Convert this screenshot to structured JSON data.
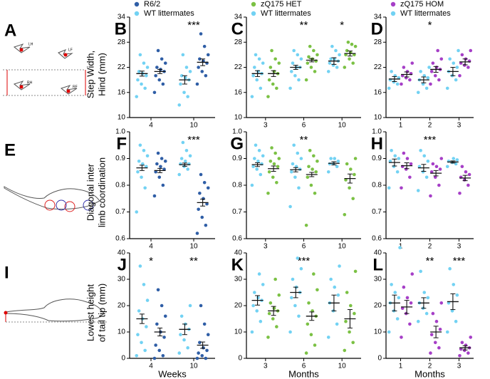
{
  "schematics": [
    {
      "label": "A",
      "texts": [
        "LH",
        "LF",
        "RH",
        "RF"
      ]
    },
    {
      "label": "E"
    },
    {
      "label": "I"
    }
  ],
  "chart_data": [
    {
      "type": "dot",
      "panel": "B",
      "ylabel": [
        "Step Width,",
        "Hind (mm)"
      ],
      "categories": [
        "4",
        "10"
      ],
      "ylim": [
        10,
        34
      ],
      "yticks": [
        10,
        16,
        22,
        28,
        34
      ],
      "legend": true,
      "significance": [
        null,
        "***"
      ],
      "series": [
        {
          "name": "WT littermates",
          "color": "#72d2f3",
          "points": [
            [
              15,
              17,
              18,
              19,
              20,
              20.5,
              21,
              22,
              23,
              25
            ],
            [
              13,
              15,
              16,
              18,
              19,
              19.5,
              20,
              21,
              22,
              25
            ]
          ],
          "mean": [
            20.5,
            19
          ],
          "sem": [
            0.6,
            1.0
          ]
        },
        {
          "name": "R6/2",
          "color": "#2f5ea6",
          "points": [
            [
              16,
              18,
              19,
              20,
              21,
              21.5,
              22,
              23,
              24,
              26
            ],
            [
              18,
              20,
              21,
              22,
              23,
              23.5,
              24,
              25,
              27,
              30
            ]
          ],
          "mean": [
            21,
            23.2
          ],
          "sem": [
            0.5,
            0.8
          ]
        }
      ]
    },
    {
      "type": "dot",
      "panel": "C",
      "categories": [
        "3",
        "6",
        "10"
      ],
      "ylim": [
        10,
        34
      ],
      "yticks": [
        10,
        16,
        22,
        28,
        34
      ],
      "legend": true,
      "significance": [
        null,
        "**",
        "*"
      ],
      "series": [
        {
          "name": "WT littermates",
          "color": "#72d2f3",
          "points": [
            [
              15,
              17,
              19,
              20,
              20.5,
              21,
              22,
              23,
              24,
              25
            ],
            [
              17,
              19,
              20,
              21,
              22,
              22,
              23,
              24,
              25,
              26
            ],
            [
              21,
              22,
              22.5,
              23,
              23.5,
              24,
              24,
              25,
              26,
              27
            ]
          ],
          "mean": [
            20.5,
            22,
            23.5
          ],
          "sem": [
            0.7,
            0.5,
            0.8
          ]
        },
        {
          "name": "zQ175 HET",
          "color": "#7bc144",
          "points": [
            [
              15,
              17,
              18,
              19,
              20.5,
              21,
              22,
              23,
              24,
              26
            ],
            [
              19,
              21,
              22,
              23,
              23.5,
              24,
              24.5,
              25,
              26,
              27
            ],
            [
              22,
              23,
              24,
              25,
              25,
              25.5,
              26,
              27,
              27.5,
              28
            ]
          ],
          "mean": [
            20.5,
            23.7,
            25.3
          ],
          "sem": [
            0.7,
            0.4,
            0.6
          ]
        }
      ]
    },
    {
      "type": "dot",
      "panel": "D",
      "categories": [
        "1",
        "2",
        "3"
      ],
      "ylim": [
        10,
        34
      ],
      "yticks": [
        10,
        16,
        22,
        28,
        34
      ],
      "legend": true,
      "significance": [
        null,
        "*",
        null
      ],
      "series": [
        {
          "name": "WT littermates",
          "color": "#72d2f3",
          "points": [
            [
              17,
              18,
              18.5,
              19,
              19.5,
              20,
              21
            ],
            [
              16,
              17,
              18,
              19,
              19.5,
              20,
              21,
              22
            ],
            [
              17,
              19,
              20,
              21,
              22,
              23,
              24,
              26
            ]
          ],
          "mean": [
            19.2,
            19,
            21
          ],
          "sem": [
            0.6,
            0.7,
            1.0
          ]
        },
        {
          "name": "zQ175 HOM",
          "color": "#a63fc7",
          "points": [
            [
              18,
              19,
              19.5,
              20,
              20.5,
              21,
              22,
              23
            ],
            [
              18,
              19,
              20,
              21,
              21.5,
              22,
              23,
              24,
              26
            ],
            [
              20,
              22,
              22.5,
              23,
              23.5,
              24,
              25,
              26
            ]
          ],
          "mean": [
            20.3,
            21.5,
            23.3
          ],
          "sem": [
            0.6,
            0.7,
            0.7
          ]
        }
      ]
    },
    {
      "type": "dot",
      "panel": "F",
      "ylabel": [
        "Diagonal inter",
        "limb coordination"
      ],
      "categories": [
        "4",
        "10"
      ],
      "ylim": [
        0.6,
        1
      ],
      "yticks": [
        0.6,
        0.7,
        0.8,
        0.9,
        {
          "value": 1,
          "label": "1.0"
        }
      ],
      "significance": [
        null,
        "***"
      ],
      "series": [
        {
          "color": "#72d2f3",
          "points": [
            [
              0.7,
              0.79,
              0.83,
              0.85,
              0.87,
              0.88,
              0.89,
              0.91,
              0.93,
              0.95
            ],
            [
              0.84,
              0.86,
              0.87,
              0.88,
              0.88,
              0.89,
              0.9,
              0.91,
              0.93,
              0.96
            ]
          ],
          "mean": [
            0.865,
            0.877
          ],
          "sem": [
            0.01,
            0.006
          ]
        },
        {
          "color": "#2f5ea6",
          "points": [
            [
              0.76,
              0.8,
              0.83,
              0.85,
              0.86,
              0.87,
              0.88,
              0.89,
              0.9,
              0.92
            ],
            [
              0.62,
              0.65,
              0.68,
              0.71,
              0.73,
              0.75,
              0.77,
              0.79,
              0.81,
              0.84
            ]
          ],
          "mean": [
            0.855,
            0.735
          ],
          "sem": [
            0.008,
            0.013
          ]
        }
      ]
    },
    {
      "type": "dot",
      "panel": "G",
      "categories": [
        "3",
        "6",
        "10"
      ],
      "ylim": [
        0.6,
        1
      ],
      "yticks": [
        0.6,
        0.7,
        0.8,
        0.9,
        {
          "value": 1,
          "label": "1.0"
        }
      ],
      "significance": [
        null,
        "**",
        null
      ],
      "series": [
        {
          "color": "#72d2f3",
          "points": [
            [
              0.8,
              0.84,
              0.86,
              0.87,
              0.88,
              0.89,
              0.9,
              0.91,
              0.93,
              0.95
            ],
            [
              0.72,
              0.79,
              0.83,
              0.85,
              0.86,
              0.87,
              0.88,
              0.9,
              0.92,
              0.95
            ],
            [
              0.85,
              0.87,
              0.88,
              0.88,
              0.89,
              0.9,
              0.9
            ]
          ],
          "mean": [
            0.877,
            0.858,
            0.882
          ],
          "sem": [
            0.007,
            0.008,
            0.006
          ]
        },
        {
          "color": "#7bc144",
          "points": [
            [
              0.77,
              0.81,
              0.83,
              0.85,
              0.87,
              0.88,
              0.89,
              0.9,
              0.92,
              0.94
            ],
            [
              0.65,
              0.77,
              0.8,
              0.83,
              0.85,
              0.86,
              0.87,
              0.89,
              0.91,
              0.93
            ],
            [
              0.69,
              0.75,
              0.79,
              0.82,
              0.84,
              0.86,
              0.88,
              0.9
            ]
          ],
          "mean": [
            0.862,
            0.84,
            0.825
          ],
          "sem": [
            0.01,
            0.008,
            0.017
          ]
        }
      ]
    },
    {
      "type": "dot",
      "panel": "H",
      "categories": [
        "1",
        "2",
        "3"
      ],
      "ylim": [
        0.6,
        1
      ],
      "yticks": [
        0.6,
        0.7,
        0.8,
        0.9,
        {
          "value": 1,
          "label": "1.0"
        }
      ],
      "significance": [
        null,
        "***",
        null
      ],
      "series": [
        {
          "color": "#72d2f3",
          "points": [
            [
              0.79,
              0.85,
              0.87,
              0.89,
              0.9,
              0.91,
              0.93
            ],
            [
              0.78,
              0.83,
              0.85,
              0.87,
              0.89,
              0.91,
              0.93
            ],
            [
              0.87,
              0.88,
              0.885,
              0.89,
              0.895,
              0.9
            ]
          ],
          "mean": [
            0.885,
            0.865,
            0.887
          ],
          "sem": [
            0.013,
            0.013,
            0.004
          ]
        },
        {
          "color": "#a63fc7",
          "points": [
            [
              0.79,
              0.83,
              0.86,
              0.87,
              0.88,
              0.9,
              0.92
            ],
            [
              0.76,
              0.8,
              0.83,
              0.85,
              0.86,
              0.87,
              0.88,
              0.9
            ],
            [
              0.77,
              0.8,
              0.82,
              0.83,
              0.84,
              0.85,
              0.87
            ]
          ],
          "mean": [
            0.873,
            0.845,
            0.827
          ],
          "sem": [
            0.011,
            0.01,
            0.01
          ]
        }
      ]
    },
    {
      "type": "dot",
      "panel": "J",
      "ylabel": [
        "Lowest height",
        "of tail tip (mm)"
      ],
      "xlabel": "Weeks",
      "categories": [
        "4",
        "10"
      ],
      "ylim": [
        0,
        40
      ],
      "yticks": [
        0,
        10,
        20,
        30,
        40
      ],
      "significance": [
        "*",
        "**"
      ],
      "series": [
        {
          "color": "#72d2f3",
          "points": [
            [
              1,
              3,
              6,
              9,
              12,
              15,
              18,
              22,
              28,
              35
            ],
            [
              2,
              4,
              7,
              9,
              11,
              13,
              16,
              20
            ]
          ],
          "mean": [
            15,
            11
          ],
          "sem": [
            1.8,
            2.0
          ]
        },
        {
          "color": "#2f5ea6",
          "points": [
            [
              0,
              1,
              3,
              5,
              8,
              10,
              13,
              16,
              20,
              26
            ],
            [
              0,
              0,
              1,
              2,
              3,
              4,
              6,
              9,
              13,
              20
            ]
          ],
          "mean": [
            10,
            5
          ],
          "sem": [
            1.5,
            1.2
          ]
        }
      ]
    },
    {
      "type": "dot",
      "panel": "K",
      "xlabel": "Months",
      "categories": [
        "3",
        "6",
        "10"
      ],
      "ylim": [
        0,
        40
      ],
      "yticks": [
        0,
        10,
        20,
        30,
        40
      ],
      "significance": [
        null,
        "***",
        null
      ],
      "series": [
        {
          "color": "#72d2f3",
          "points": [
            [
              10,
              14,
              18,
              20,
              22,
              23,
              25,
              28,
              32
            ],
            [
              10,
              16,
              20,
              23,
              25,
              27,
              30,
              34,
              38
            ],
            [
              8,
              13,
              18,
              21,
              24,
              27,
              30,
              35
            ]
          ],
          "mean": [
            22,
            25,
            21
          ],
          "sem": [
            1.8,
            2.0,
            3.0
          ]
        },
        {
          "color": "#7bc144",
          "points": [
            [
              8,
              12,
              15,
              17,
              18,
              19,
              21,
              24,
              30
            ],
            [
              2,
              5,
              9,
              13,
              16,
              18,
              21,
              26,
              32
            ],
            [
              3,
              6,
              10,
              14,
              17,
              20,
              25,
              33
            ]
          ],
          "mean": [
            18,
            16,
            15
          ],
          "sem": [
            1.7,
            1.6,
            3.5
          ]
        }
      ]
    },
    {
      "type": "dot",
      "panel": "L",
      "xlabel": "Months",
      "categories": [
        "1",
        "2",
        "3"
      ],
      "ylim": [
        0,
        40
      ],
      "yticks": [
        0,
        10,
        20,
        30,
        40
      ],
      "significance": [
        null,
        "**",
        "***"
      ],
      "series": [
        {
          "color": "#72d2f3",
          "points": [
            [
              10,
              15,
              18,
              21,
              23,
              25,
              28,
              42
            ],
            [
              14,
              17,
              19,
              21,
              23,
              25,
              33
            ],
            [
              10,
              14,
              18,
              21,
              24,
              28,
              34
            ]
          ],
          "mean": [
            21,
            21,
            21.5
          ],
          "sem": [
            3.0,
            2.0,
            3.0
          ]
        },
        {
          "color": "#a63fc7",
          "points": [
            [
              8,
              13,
              17,
              19,
              21,
              23,
              27,
              32
            ],
            [
              2,
              4,
              6,
              9,
              11,
              14,
              17,
              21
            ],
            [
              1,
              2,
              3,
              3.5,
              4,
              5,
              6,
              8
            ]
          ],
          "mean": [
            19.5,
            10,
            4
          ],
          "sem": [
            2.5,
            2.2,
            0.8
          ]
        }
      ]
    }
  ]
}
